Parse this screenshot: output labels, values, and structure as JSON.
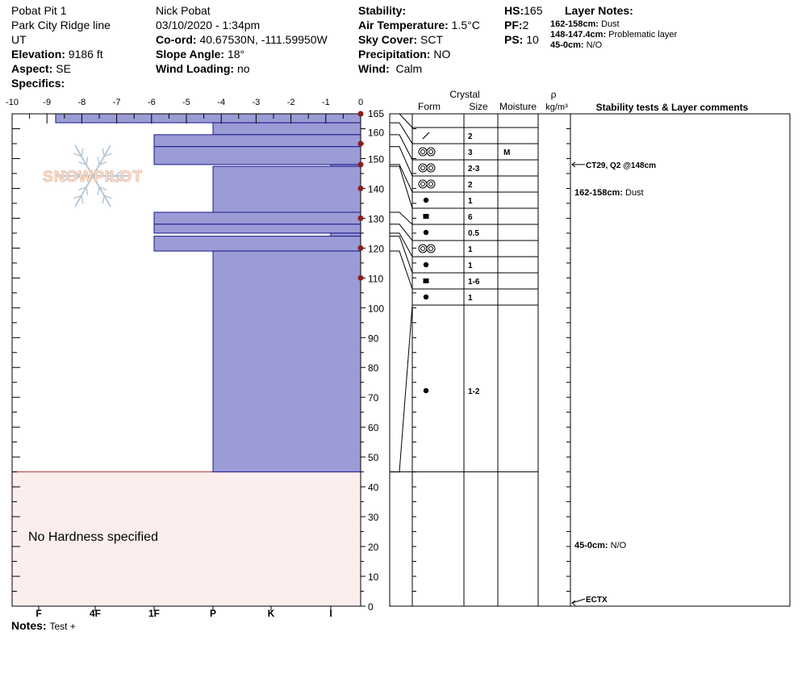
{
  "header": {
    "pit_name": "Pobat Pit 1",
    "location": "Park City Ridge line",
    "state": "UT",
    "elevation_label": "Elevation:",
    "elevation": "9186 ft",
    "aspect_label": "Aspect:",
    "aspect": "SE",
    "specifics_label": "Specifics:",
    "observer": "Nick Pobat",
    "datetime": "03/10/2020 - 1:34pm",
    "coord_label": "Co-ord:",
    "coord": "40.67530N, -111.59950W",
    "slope_label": "Slope Angle:",
    "slope": "18°",
    "wind_loading_label": "Wind Loading:",
    "wind_loading": "no",
    "stability_label": "Stability:",
    "air_temp_label": "Air Temperature:",
    "air_temp": "1.5°C",
    "sky_label": "Sky Cover:",
    "sky": "SCT",
    "precip_label": "Precipitation:",
    "precip": "NO",
    "wind_label": "Wind:",
    "wind": "Calm",
    "hs_label": "HS:",
    "hs": "165",
    "pf_label": "PF:",
    "pf": "2",
    "ps_label": "PS:",
    "ps": "10",
    "layer_notes_title": "Layer Notes:",
    "layer_notes": [
      {
        "range": "162-158cm:",
        "text": "Dust"
      },
      {
        "range": "148-147.4cm:",
        "text": "Problematic layer"
      },
      {
        "range": "45-0cm:",
        "text": "N/O"
      }
    ]
  },
  "footer": {
    "notes_label": "Notes:",
    "notes": "Test +"
  },
  "watermark": "SNOWPILOT",
  "chart_data": {
    "type": "snow-profile",
    "temperature_axis": {
      "ticks": [
        -10,
        -9,
        -8,
        -7,
        -6,
        -5,
        -4,
        -3,
        -2,
        -1,
        0
      ],
      "range": [
        -10,
        0
      ]
    },
    "height_axis": {
      "range": [
        0,
        165
      ],
      "tick_labels": [
        0,
        10,
        20,
        30,
        40,
        50,
        60,
        70,
        80,
        90,
        100,
        110,
        120,
        130,
        140,
        150,
        160,
        165
      ]
    },
    "hardness_axis": {
      "labels": [
        "I",
        "K",
        "P",
        "1F",
        "4F",
        "F"
      ],
      "values": [
        1,
        2,
        3,
        4,
        5,
        6
      ]
    },
    "hardness_layers": [
      {
        "top": 165,
        "bottom": 162,
        "hardness": 5.7
      },
      {
        "top": 162,
        "bottom": 158,
        "hardness": 3
      },
      {
        "top": 158,
        "bottom": 154,
        "hardness": 4
      },
      {
        "top": 154,
        "bottom": 148,
        "hardness": 4
      },
      {
        "top": 148,
        "bottom": 147.4,
        "hardness": 1
      },
      {
        "top": 147.4,
        "bottom": 132,
        "hardness": 3
      },
      {
        "top": 132,
        "bottom": 128,
        "hardness": 4
      },
      {
        "top": 128,
        "bottom": 125,
        "hardness": 4
      },
      {
        "top": 125,
        "bottom": 124,
        "hardness": 1
      },
      {
        "top": 124,
        "bottom": 119,
        "hardness": 4
      },
      {
        "top": 119,
        "bottom": 45,
        "hardness": 3
      }
    ],
    "no_hardness": {
      "top": 45,
      "bottom": 0,
      "label": "No Hardness specified"
    },
    "temperature_points": [
      165,
      155,
      148,
      140,
      130,
      120,
      110
    ],
    "columns": {
      "crystal": "Crystal",
      "form": "Form",
      "size": "Size",
      "moisture": "Moisture",
      "rho": "ρ",
      "density_unit": "kg/m³",
      "comments": "Stability tests & Layer comments"
    },
    "rows": [
      {
        "form": "slash",
        "size": "2",
        "moisture": ""
      },
      {
        "form": "rounded",
        "size": "3",
        "moisture": "M"
      },
      {
        "form": "rounded",
        "size": "2-3",
        "moisture": ""
      },
      {
        "form": "rounded",
        "size": "2",
        "moisture": ""
      },
      {
        "form": "dot",
        "size": "1",
        "moisture": ""
      },
      {
        "form": "square",
        "size": "6",
        "moisture": ""
      },
      {
        "form": "dot",
        "size": "0.5",
        "moisture": ""
      },
      {
        "form": "rounded",
        "size": "1",
        "moisture": ""
      },
      {
        "form": "dot",
        "size": "1",
        "moisture": ""
      },
      {
        "form": "square",
        "size": "1-6",
        "moisture": ""
      },
      {
        "form": "dot",
        "size": "1",
        "moisture": ""
      },
      {
        "form": "dot",
        "size": "1-2",
        "moisture": ""
      }
    ],
    "stability_tests": [
      {
        "height": 148,
        "text": "CT29, Q2 @148cm"
      },
      {
        "height": 0,
        "text": "ECTX"
      }
    ],
    "layer_comments": [
      {
        "range": "162-158cm:",
        "text": "Dust"
      },
      {
        "range": "45-0cm:",
        "text": "N/O"
      }
    ]
  }
}
